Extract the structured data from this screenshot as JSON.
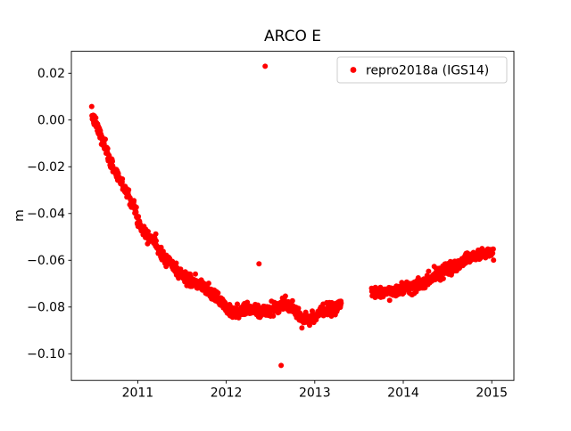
{
  "figure": {
    "background": "#ffffff"
  },
  "chart_data": {
    "type": "scatter",
    "title": "ARCO E",
    "xlabel": "",
    "ylabel": "m",
    "xlim": [
      2010.25,
      2015.25
    ],
    "ylim": [
      -0.1114,
      0.0294
    ],
    "xticks": [
      2011,
      2012,
      2013,
      2014,
      2015
    ],
    "yticks": [
      0.02,
      0.0,
      -0.02,
      -0.04,
      -0.06,
      -0.08,
      -0.1
    ],
    "grid": false,
    "legend": {
      "label": "repro2018a (IGS14)",
      "marker_color": "#ff0000",
      "position": "upper right"
    },
    "series": [
      {
        "name": "repro2018a (IGS14)",
        "color": "#ff0000",
        "marker": "dot",
        "marker_radius": 3,
        "x_start": 2010.48,
        "x_end": 2015.02,
        "points_per_year": 300,
        "noise_std": 0.0013,
        "wobble": [
          [
            0.0012,
            0.9,
            0.0
          ],
          [
            0.0007,
            2.3,
            1.0
          ]
        ],
        "seed": 7,
        "trend_anchors": [
          [
            2010.48,
            0.001
          ],
          [
            2010.55,
            -0.004
          ],
          [
            2010.62,
            -0.01
          ],
          [
            2010.7,
            -0.017
          ],
          [
            2010.78,
            -0.023
          ],
          [
            2010.86,
            -0.029
          ],
          [
            2010.95,
            -0.036
          ],
          [
            2011.0,
            -0.042
          ],
          [
            2011.08,
            -0.047
          ],
          [
            2011.16,
            -0.05
          ],
          [
            2011.24,
            -0.056
          ],
          [
            2011.32,
            -0.061
          ],
          [
            2011.42,
            -0.065
          ],
          [
            2011.55,
            -0.068
          ],
          [
            2011.7,
            -0.071
          ],
          [
            2011.85,
            -0.074
          ],
          [
            2011.95,
            -0.076
          ],
          [
            2012.05,
            -0.08
          ],
          [
            2012.15,
            -0.082
          ],
          [
            2012.35,
            -0.082
          ],
          [
            2012.55,
            -0.082
          ],
          [
            2012.7,
            -0.08
          ],
          [
            2012.85,
            -0.083
          ],
          [
            2012.95,
            -0.084
          ],
          [
            2013.05,
            -0.082
          ],
          [
            2013.15,
            -0.08
          ],
          [
            2013.28,
            -0.079
          ],
          [
            2013.66,
            -0.0745
          ],
          [
            2013.8,
            -0.0735
          ],
          [
            2013.95,
            -0.073
          ],
          [
            2014.1,
            -0.0705
          ],
          [
            2014.25,
            -0.068
          ],
          [
            2014.4,
            -0.066
          ],
          [
            2014.55,
            -0.0635
          ],
          [
            2014.7,
            -0.0605
          ],
          [
            2014.82,
            -0.06
          ],
          [
            2014.92,
            -0.0575
          ],
          [
            2015.02,
            -0.0555
          ]
        ],
        "gaps": [
          [
            2013.3,
            2013.64
          ]
        ],
        "outliers": [
          [
            2012.44,
            0.023
          ],
          [
            2012.37,
            -0.0615
          ],
          [
            2012.62,
            -0.105
          ]
        ]
      }
    ]
  }
}
